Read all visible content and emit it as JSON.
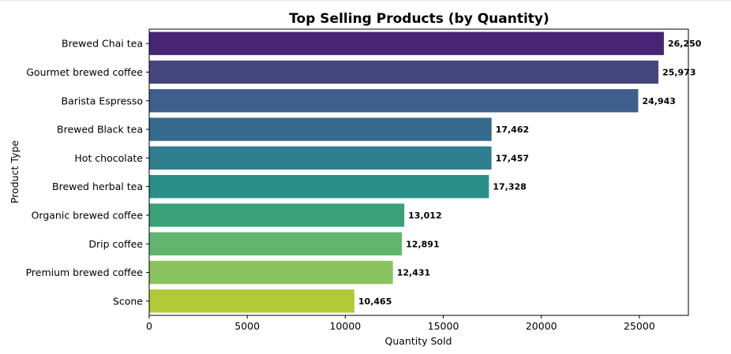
{
  "chart_data": {
    "type": "bar",
    "orientation": "horizontal",
    "title": "Top Selling Products (by Quantity)",
    "xlabel": "Quantity Sold",
    "ylabel": "Product Type",
    "xlim": [
      0,
      27500
    ],
    "xticks": [
      0,
      5000,
      10000,
      15000,
      20000,
      25000
    ],
    "xtick_labels": [
      "0",
      "5000",
      "10000",
      "15000",
      "20000",
      "25000"
    ],
    "categories": [
      "Brewed Chai tea",
      "Gourmet brewed coffee",
      "Barista Espresso",
      "Brewed Black tea",
      "Hot chocolate",
      "Brewed herbal tea",
      "Organic brewed coffee",
      "Drip coffee",
      "Premium brewed coffee",
      "Scone"
    ],
    "values": [
      26250,
      25973,
      24943,
      17462,
      17457,
      17328,
      13012,
      12891,
      12431,
      10465
    ],
    "value_labels": [
      "26,250",
      "25,973",
      "24,943",
      "17,462",
      "17,457",
      "17,328",
      "13,012",
      "12,891",
      "12,431",
      "10,465"
    ],
    "colors": [
      "#482475",
      "#46467f",
      "#3f5e8c",
      "#366a8c",
      "#2e7e8e",
      "#2a8f89",
      "#3aa17a",
      "#62b56f",
      "#8ac35d",
      "#b0ca38"
    ],
    "grid": false,
    "legend": "none"
  }
}
